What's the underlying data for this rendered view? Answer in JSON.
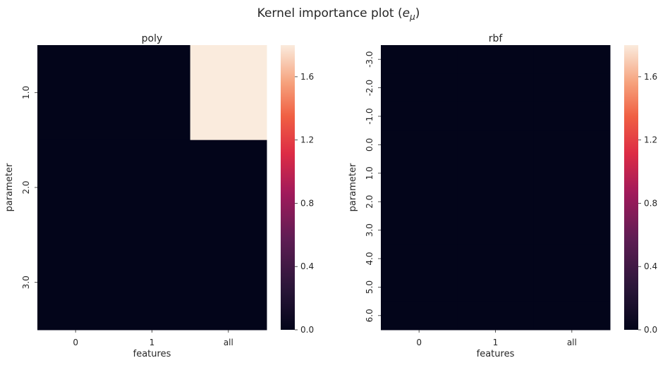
{
  "suptitle": "Kernel importance plot (",
  "suptitle_symbol": "e",
  "suptitle_subscript": "μ",
  "suptitle_end": ")",
  "colors": {
    "low": "#03051a",
    "mid": "#a11a5b",
    "high": "#faebdd"
  },
  "chart_data": [
    {
      "type": "heatmap",
      "title": "poly",
      "xlabel": "features",
      "ylabel": "parameter",
      "x_categories": [
        "0",
        "1",
        "all"
      ],
      "y_categories": [
        "1.0",
        "2.0",
        "3.0"
      ],
      "values": [
        [
          0.0,
          0.0,
          1.8
        ],
        [
          0.0,
          0.0,
          0.0
        ],
        [
          0.0,
          0.0,
          0.0
        ]
      ],
      "colorbar_range": [
        0,
        1.8
      ],
      "colorbar_ticks": [
        "0.0",
        "0.4",
        "0.8",
        "1.2",
        "1.6"
      ],
      "colorbar_tick_values": [
        0,
        0.4,
        0.8,
        1.2,
        1.6
      ]
    },
    {
      "type": "heatmap",
      "title": "rbf",
      "xlabel": "features",
      "ylabel": "parameter",
      "x_categories": [
        "0",
        "1",
        "all"
      ],
      "y_categories": [
        "-3.0",
        "-2.0",
        "-1.0",
        "0.0",
        "1.0",
        "2.0",
        "3.0",
        "4.0",
        "5.0",
        "6.0"
      ],
      "values": [
        [
          0,
          0,
          0
        ],
        [
          0,
          0,
          0
        ],
        [
          0,
          0,
          0
        ],
        [
          0,
          0,
          0
        ],
        [
          0,
          0,
          0
        ],
        [
          0,
          0,
          0
        ],
        [
          0,
          0,
          0
        ],
        [
          0,
          0,
          0
        ],
        [
          0,
          0,
          0
        ],
        [
          0,
          0,
          0
        ]
      ],
      "colorbar_range": [
        0,
        1.8
      ],
      "colorbar_ticks": [
        "0.0",
        "0.4",
        "0.8",
        "1.2",
        "1.6"
      ],
      "colorbar_tick_values": [
        0,
        0.4,
        0.8,
        1.2,
        1.6
      ]
    }
  ]
}
